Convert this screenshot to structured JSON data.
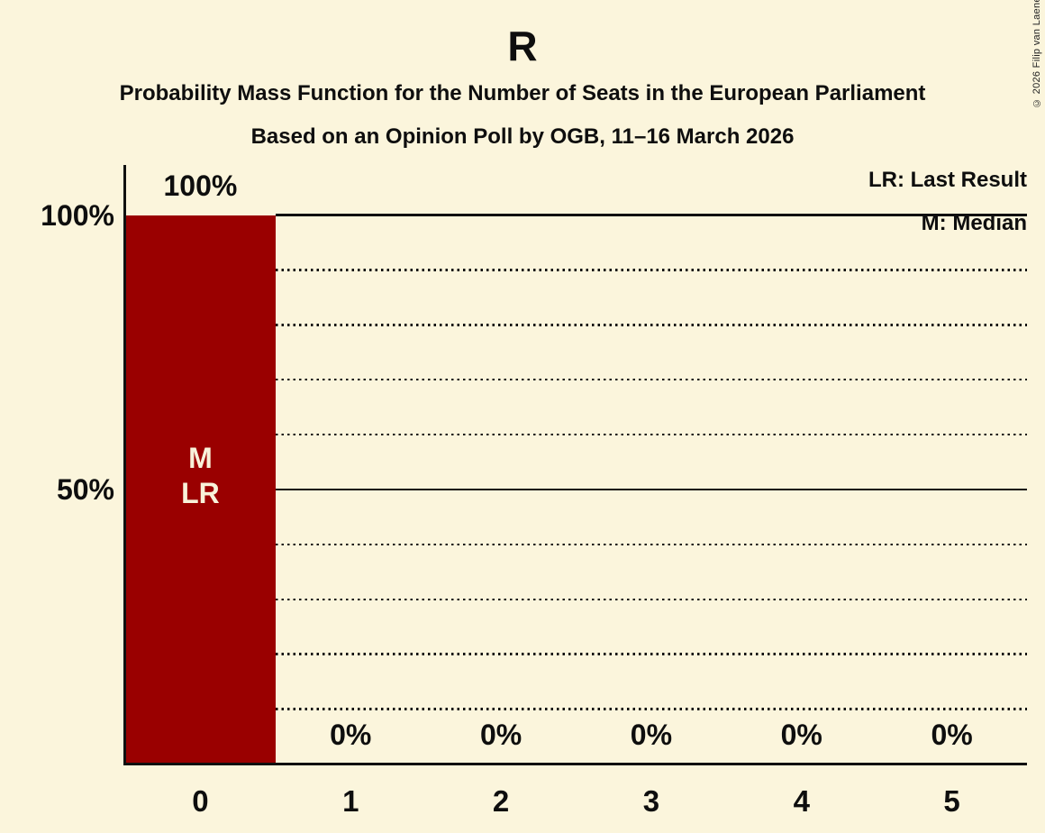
{
  "title": "R",
  "subtitle": "Probability Mass Function for the Number of Seats in the European Parliament",
  "poll_info": "Based on an Opinion Poll by OGB, 11–16 March 2026",
  "copyright": "© 2026 Filip van Laenen",
  "legend": {
    "lr": "LR: Last Result",
    "m": "M: Median"
  },
  "colors": {
    "background": "#FBF5DC",
    "bar": "#9A0000",
    "text": "#0E0E0E",
    "bar_label": "#F8F2DA",
    "grid": "#101010"
  },
  "chart_data": {
    "type": "bar",
    "title": "R",
    "categories": [
      "0",
      "1",
      "2",
      "3",
      "4",
      "5"
    ],
    "values": [
      100,
      0,
      0,
      0,
      0,
      0
    ],
    "value_labels": [
      "100%",
      "0%",
      "0%",
      "0%",
      "0%",
      "0%"
    ],
    "xlabel": "",
    "ylabel": "",
    "ylim": [
      0,
      100
    ],
    "y_ticks": [
      {
        "label": "100%",
        "value": 100
      },
      {
        "label": "50%",
        "value": 50
      }
    ],
    "gridlines": [
      {
        "value": 100,
        "style": "solid"
      },
      {
        "value": 90,
        "style": "dotted"
      },
      {
        "value": 80,
        "style": "dotted"
      },
      {
        "value": 70,
        "style": "dotted"
      },
      {
        "value": 60,
        "style": "dotted"
      },
      {
        "value": 50,
        "style": "solid"
      },
      {
        "value": 40,
        "style": "dotted"
      },
      {
        "value": 30,
        "style": "dotted"
      },
      {
        "value": 20,
        "style": "dotted"
      },
      {
        "value": 10,
        "style": "dotted"
      }
    ],
    "annotated_bar": {
      "index": 0,
      "lines": [
        "M",
        "LR"
      ]
    },
    "legend_position": "top-right",
    "grid": "horizontal"
  }
}
